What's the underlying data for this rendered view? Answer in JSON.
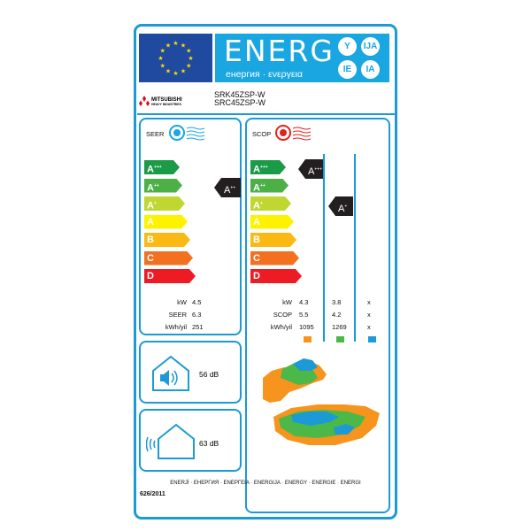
{
  "header": {
    "title": "ENERG",
    "subtitle": "енергия · ενεργεια",
    "suffixes": [
      "Y",
      "IJA",
      "IE",
      "IA"
    ],
    "flag_icon": "eu-flag",
    "color": "#1aa6e0"
  },
  "brand": {
    "name": "MITSUBISHI",
    "sub": "HEAVY INDUSTRIES",
    "logo_icon": "three-diamonds-logo"
  },
  "models": [
    "SRK45ZSP-W",
    "SRC45ZSP-W"
  ],
  "classes": [
    "A+++",
    "A++",
    "A+",
    "A",
    "B",
    "C",
    "D"
  ],
  "class_colors": [
    "#1b9a48",
    "#4cb047",
    "#bfd730",
    "#fff200",
    "#fbb913",
    "#f37021",
    "#ed1c24"
  ],
  "cooling": {
    "title": "SEER",
    "icon": "fan-cool-icon",
    "class": "A++",
    "rows": [
      {
        "label": "kW",
        "value": "4.5"
      },
      {
        "label": "SEER",
        "value": "6.3"
      },
      {
        "label": "kWh/yil",
        "value": "251"
      }
    ]
  },
  "heating": {
    "title": "SCOP",
    "icon": "fan-heat-icon",
    "classes": [
      "A+++",
      "A+"
    ],
    "rows": [
      {
        "label": "kW",
        "values": [
          "4.3",
          "3.8",
          "x"
        ]
      },
      {
        "label": "SCOP",
        "values": [
          "5.5",
          "4.2",
          "x"
        ]
      },
      {
        "label": "kWh/yil",
        "values": [
          "1095",
          "1269",
          "x"
        ]
      }
    ],
    "zone_colors": [
      "#f7941d",
      "#4cb847",
      "#1c9ad6"
    ]
  },
  "noise": [
    {
      "value": "56 dB",
      "icon": "indoor-speaker-icon"
    },
    {
      "value": "63 dB",
      "icon": "outdoor-sound-icon"
    }
  ],
  "footer": "ENERJİ · ЕНЕРГИЯ · ΕΝΕΡΓΕΙΑ · ENERGIJA · ENERGY · ENERGIE · ENERGI",
  "regulation": "626/2011"
}
